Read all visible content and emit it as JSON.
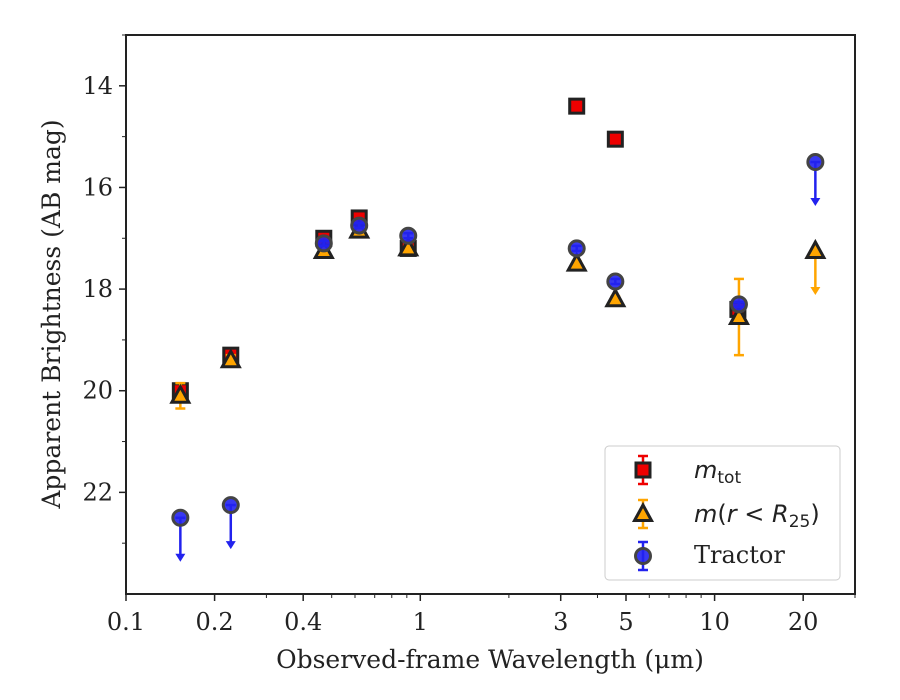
{
  "chart_data": {
    "type": "scatter",
    "xlabel": "Observed-frame Wavelength (μm)",
    "ylabel": "Apparent Brightness (AB mag)",
    "xscale": "log",
    "xlim": [
      0.1,
      30
    ],
    "ylim": [
      24,
      13
    ],
    "y_inverted": true,
    "x_ticks": [
      {
        "value": 0.1,
        "label": "0.1"
      },
      {
        "value": 0.2,
        "label": "0.2"
      },
      {
        "value": 0.4,
        "label": "0.4"
      },
      {
        "value": 1,
        "label": "1"
      },
      {
        "value": 3,
        "label": "3"
      },
      {
        "value": 5,
        "label": "5"
      },
      {
        "value": 10,
        "label": "10"
      },
      {
        "value": 20,
        "label": "20"
      }
    ],
    "y_ticks": [
      {
        "value": 14,
        "label": "14"
      },
      {
        "value": 16,
        "label": "16"
      },
      {
        "value": 18,
        "label": "18"
      },
      {
        "value": 20,
        "label": "20"
      },
      {
        "value": 22,
        "label": "22"
      }
    ],
    "grid": false,
    "legend_position": "lower-right",
    "legend": [
      {
        "key": "mtot",
        "label_main": "m",
        "label_sub": "tot"
      },
      {
        "key": "mr25",
        "label_main": "m",
        "label_paren_open": "(",
        "label_r": "r",
        "label_lt": " < ",
        "label_R": "R",
        "label_sub": "25",
        "label_paren_close": ")"
      },
      {
        "key": "tractor",
        "label": "Tractor"
      }
    ],
    "series": [
      {
        "key": "mtot",
        "marker": "square",
        "color": "#ee0000",
        "edge": "#222222",
        "points": [
          {
            "x": 0.153,
            "y": 20.0,
            "err": 0.1
          },
          {
            "x": 0.227,
            "y": 19.3,
            "err": 0.1
          },
          {
            "x": 0.47,
            "y": 17.0,
            "err": 0.1
          },
          {
            "x": 0.62,
            "y": 16.6,
            "err": 0.1
          },
          {
            "x": 0.91,
            "y": 17.2,
            "err": 0.05
          },
          {
            "x": 3.4,
            "y": 14.4,
            "err": 0.05
          },
          {
            "x": 4.6,
            "y": 15.05,
            "err": 0.05
          },
          {
            "x": 12,
            "y": 18.4,
            "err": 0.05
          }
        ]
      },
      {
        "key": "mr25",
        "marker": "triangle",
        "color": "#ffa500",
        "edge": "#222222",
        "points": [
          {
            "x": 0.153,
            "y": 20.1,
            "err": 0.25
          },
          {
            "x": 0.227,
            "y": 19.4,
            "err": 0.1
          },
          {
            "x": 0.47,
            "y": 17.25,
            "err": 0.05
          },
          {
            "x": 0.62,
            "y": 16.85,
            "err": 0.05
          },
          {
            "x": 0.91,
            "y": 17.2,
            "err": 0.05
          },
          {
            "x": 3.4,
            "y": 17.5,
            "err": 0.05
          },
          {
            "x": 4.6,
            "y": 18.2,
            "err": 0.05
          },
          {
            "x": 12.1,
            "y": 18.55,
            "err": 0.75
          },
          {
            "x": 22,
            "y": 17.25,
            "upper_limit": true
          }
        ]
      },
      {
        "key": "tractor",
        "marker": "circle",
        "color": "#2222ee",
        "edge": "#444444",
        "points": [
          {
            "x": 0.153,
            "y": 22.5,
            "upper_limit": true
          },
          {
            "x": 0.227,
            "y": 22.25,
            "upper_limit": true
          },
          {
            "x": 0.47,
            "y": 17.1,
            "err": 0.05
          },
          {
            "x": 0.62,
            "y": 16.75,
            "err": 0.05
          },
          {
            "x": 0.91,
            "y": 16.95,
            "err": 0.05
          },
          {
            "x": 3.4,
            "y": 17.2,
            "err": 0.05
          },
          {
            "x": 4.6,
            "y": 17.85,
            "err": 0.05
          },
          {
            "x": 12.1,
            "y": 18.3,
            "err": 0.05
          },
          {
            "x": 22,
            "y": 15.5,
            "upper_limit": true
          }
        ]
      }
    ]
  }
}
